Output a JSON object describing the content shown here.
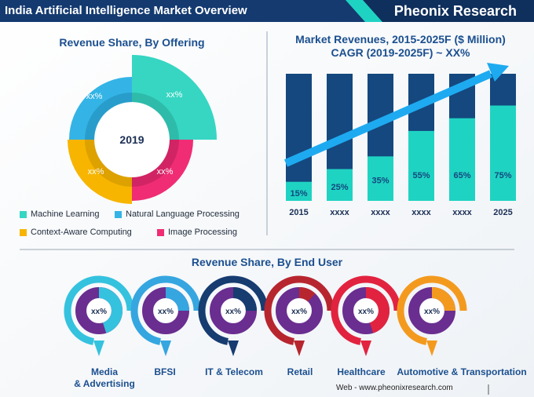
{
  "header": {
    "title": "India Artificial Intelligence Market Overview",
    "brand": "Pheonix Research"
  },
  "colors": {
    "navy": "#143a70",
    "dark_bar": "#14487f",
    "teal": "#1fd3c2",
    "cyan": "#2eb8ea",
    "yellow": "#f7b500",
    "pink": "#ef2c77",
    "purple": "#6a2d90",
    "title_blue": "#1b4f8f"
  },
  "chart_data": [
    {
      "type": "pie",
      "title": "Revenue Share, By Offering",
      "center_label": "2019",
      "slices": [
        {
          "name": "Machine Learning",
          "label": "xx%",
          "color": "#36d6c3"
        },
        {
          "name": "Natural Language Processing",
          "label": "xx%",
          "color": "#34b4e6"
        },
        {
          "name": "Context-Aware Computing",
          "label": "xx%",
          "color": "#f7b500"
        },
        {
          "name": "Image Processing",
          "label": "xx%",
          "color": "#f02d74"
        }
      ]
    },
    {
      "type": "bar",
      "title": "Market Revenues, 2015-2025F ($ Million)",
      "subtitle": "CAGR (2019-2025F) ~ XX%",
      "categories": [
        "2015",
        "xxxx",
        "xxxx",
        "xxxx",
        "xxxx",
        "2025"
      ],
      "values": [
        15,
        25,
        35,
        55,
        65,
        75
      ],
      "value_labels": [
        "15%",
        "25%",
        "35%",
        "55%",
        "65%",
        "75%"
      ],
      "ylim": [
        0,
        100
      ]
    },
    {
      "type": "pie",
      "title": "Revenue Share, By End User",
      "items": [
        {
          "name": "Media & Advertising",
          "name_lines": [
            "Media",
            "& Advertising"
          ],
          "label": "xx%",
          "share": 45,
          "color": "#35c2de"
        },
        {
          "name": "BFSI",
          "label": "xx%",
          "share": 25,
          "color": "#35a6e0"
        },
        {
          "name": "IT & Telecom",
          "label": "xx%",
          "share": 25,
          "color": "#163c70"
        },
        {
          "name": "Retail",
          "label": "xx%",
          "share": 12,
          "color": "#b7262f"
        },
        {
          "name": "Healthcare",
          "label": "xx%",
          "share": 45,
          "color": "#e2233f"
        },
        {
          "name": "Automotive & Transportation",
          "label": "xx%",
          "share": 25,
          "color": "#f39a1e"
        }
      ]
    }
  ],
  "footer": {
    "web": "Web - www.pheonixresearch.com"
  }
}
